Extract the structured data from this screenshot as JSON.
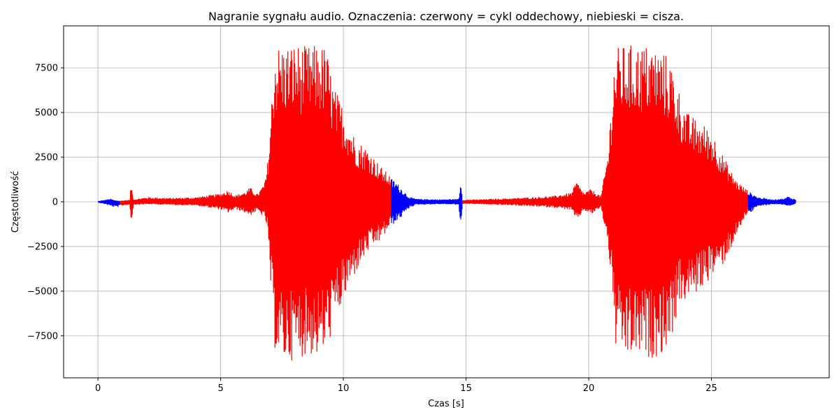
{
  "chart_data": {
    "type": "line",
    "title": "Nagranie sygnału audio. Oznaczenia: czerwony = cykl oddechowy, niebieski = cisza.",
    "xlabel": "Czas [s]",
    "ylabel": "Częstotliwość",
    "xlim": [
      -1.4,
      29.8
    ],
    "ylim": [
      -9850,
      9850
    ],
    "x_ticks": [
      0,
      5,
      10,
      15,
      20,
      25
    ],
    "x_tick_labels": [
      "0",
      "5",
      "10",
      "15",
      "20",
      "25"
    ],
    "y_ticks": [
      -7500,
      -5000,
      -2500,
      0,
      2500,
      5000,
      7500
    ],
    "y_tick_labels": [
      "−7500",
      "−5000",
      "−2500",
      "0",
      "2500",
      "5000",
      "7500"
    ],
    "grid": true,
    "colors": {
      "breath": "#ff0000",
      "silence": "#0000ff",
      "grid": "#b0b0b0"
    },
    "segments": [
      {
        "label_color": "blue",
        "x_start": 0.0,
        "x_end": 0.9,
        "envelope": [
          [
            0.0,
            20,
            -20
          ],
          [
            0.3,
            100,
            -120
          ],
          [
            0.5,
            160,
            -220
          ],
          [
            0.7,
            60,
            -300
          ],
          [
            0.9,
            40,
            -260
          ]
        ]
      },
      {
        "label_color": "red",
        "x_start": 0.9,
        "x_end": 11.95,
        "envelope": [
          [
            0.9,
            40,
            -220
          ],
          [
            1.3,
            100,
            -150
          ],
          [
            1.35,
            1050,
            -1300
          ],
          [
            1.45,
            120,
            -150
          ],
          [
            2.0,
            250,
            -120
          ],
          [
            3.0,
            200,
            -160
          ],
          [
            4.0,
            250,
            -200
          ],
          [
            5.0,
            450,
            -420
          ],
          [
            5.3,
            650,
            -600
          ],
          [
            5.6,
            350,
            -400
          ],
          [
            6.0,
            550,
            -600
          ],
          [
            6.2,
            800,
            -750
          ],
          [
            6.5,
            400,
            -500
          ],
          [
            6.8,
            1100,
            -900
          ],
          [
            6.9,
            2000,
            -1500
          ],
          [
            7.0,
            3800,
            -4000
          ],
          [
            7.2,
            8800,
            -8200
          ],
          [
            7.5,
            8800,
            -9100
          ],
          [
            8.0,
            8900,
            -8800
          ],
          [
            8.5,
            8700,
            -8600
          ],
          [
            9.0,
            8800,
            -8700
          ],
          [
            9.3,
            8700,
            -8400
          ],
          [
            9.6,
            6500,
            -7000
          ],
          [
            10.0,
            5300,
            -5600
          ],
          [
            10.5,
            3500,
            -4000
          ],
          [
            11.0,
            3000,
            -2800
          ],
          [
            11.5,
            2000,
            -2200
          ],
          [
            11.95,
            1400,
            -1300
          ]
        ]
      },
      {
        "label_color": "blue",
        "x_start": 11.95,
        "x_end": 14.85,
        "envelope": [
          [
            11.95,
            1300,
            -1300
          ],
          [
            12.1,
            1200,
            -1200
          ],
          [
            12.4,
            700,
            -800
          ],
          [
            12.7,
            250,
            -300
          ],
          [
            13.0,
            150,
            -150
          ],
          [
            14.0,
            120,
            -120
          ],
          [
            14.7,
            150,
            -150
          ],
          [
            14.8,
            1250,
            -1700
          ],
          [
            14.85,
            150,
            -200
          ]
        ]
      },
      {
        "label_color": "red",
        "x_start": 14.85,
        "x_end": 26.5,
        "envelope": [
          [
            14.85,
            100,
            -100
          ],
          [
            15.5,
            120,
            -120
          ],
          [
            17.0,
            200,
            -200
          ],
          [
            18.5,
            300,
            -300
          ],
          [
            19.3,
            500,
            -450
          ],
          [
            19.5,
            1150,
            -1100
          ],
          [
            19.8,
            500,
            -450
          ],
          [
            20.1,
            700,
            -700
          ],
          [
            20.5,
            300,
            -300
          ],
          [
            20.8,
            3000,
            -2500
          ],
          [
            21.0,
            7500,
            -6000
          ],
          [
            21.1,
            8600,
            -8200
          ],
          [
            21.5,
            8800,
            -8800
          ],
          [
            22.0,
            8800,
            -8700
          ],
          [
            22.5,
            8800,
            -8800
          ],
          [
            23.0,
            8500,
            -8500
          ],
          [
            23.3,
            8000,
            -8000
          ],
          [
            23.7,
            6200,
            -5800
          ],
          [
            24.0,
            5000,
            -5500
          ],
          [
            24.5,
            4500,
            -5000
          ],
          [
            25.0,
            4000,
            -4200
          ],
          [
            25.5,
            2500,
            -3500
          ],
          [
            26.0,
            1200,
            -2000
          ],
          [
            26.5,
            600,
            -500
          ]
        ]
      },
      {
        "label_color": "blue",
        "x_start": 26.5,
        "x_end": 28.45,
        "envelope": [
          [
            26.5,
            600,
            -500
          ],
          [
            26.6,
            500,
            -600
          ],
          [
            26.9,
            250,
            -250
          ],
          [
            27.5,
            120,
            -120
          ],
          [
            28.0,
            180,
            -150
          ],
          [
            28.1,
            300,
            -250
          ],
          [
            28.45,
            120,
            -120
          ]
        ]
      }
    ]
  }
}
